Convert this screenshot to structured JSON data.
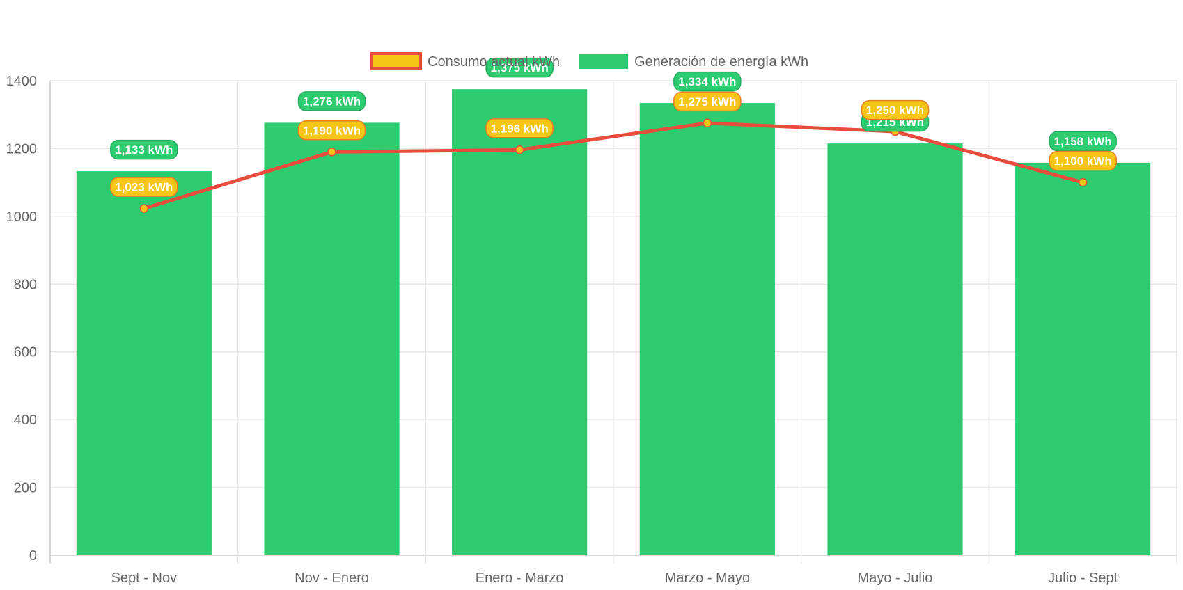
{
  "chart_data": {
    "type": "bar",
    "categories": [
      "Sept - Nov",
      "Nov - Enero",
      "Enero - Marzo",
      "Marzo - Mayo",
      "Mayo - Julio",
      "Julio - Sept"
    ],
    "series": [
      {
        "name": "Consumo actual kWh",
        "type": "line",
        "values": [
          1023,
          1190,
          1196,
          1275,
          1250,
          1100
        ],
        "labels": [
          "1,023 kWh",
          "1,190 kWh",
          "1,196 kWh",
          "1,275 kWh",
          "1,250 kWh",
          "1,100 kWh"
        ],
        "color": "#e74c3c",
        "fill_color": "#f5c518"
      },
      {
        "name": "Generación de energía kWh",
        "type": "bar",
        "values": [
          1133,
          1276,
          1375,
          1334,
          1215,
          1158
        ],
        "labels": [
          "1,133 kWh",
          "1,276 kWh",
          "1,375 kWh",
          "1,334 kWh",
          "1,215 kWh",
          "1,158 kWh"
        ],
        "color": "#2ecc71"
      }
    ],
    "yticks": [
      "0",
      "200",
      "400",
      "600",
      "800",
      "1000",
      "1200",
      "1400"
    ],
    "ylim": [
      0,
      1400
    ],
    "grid": true,
    "legend_position": "top-center"
  }
}
